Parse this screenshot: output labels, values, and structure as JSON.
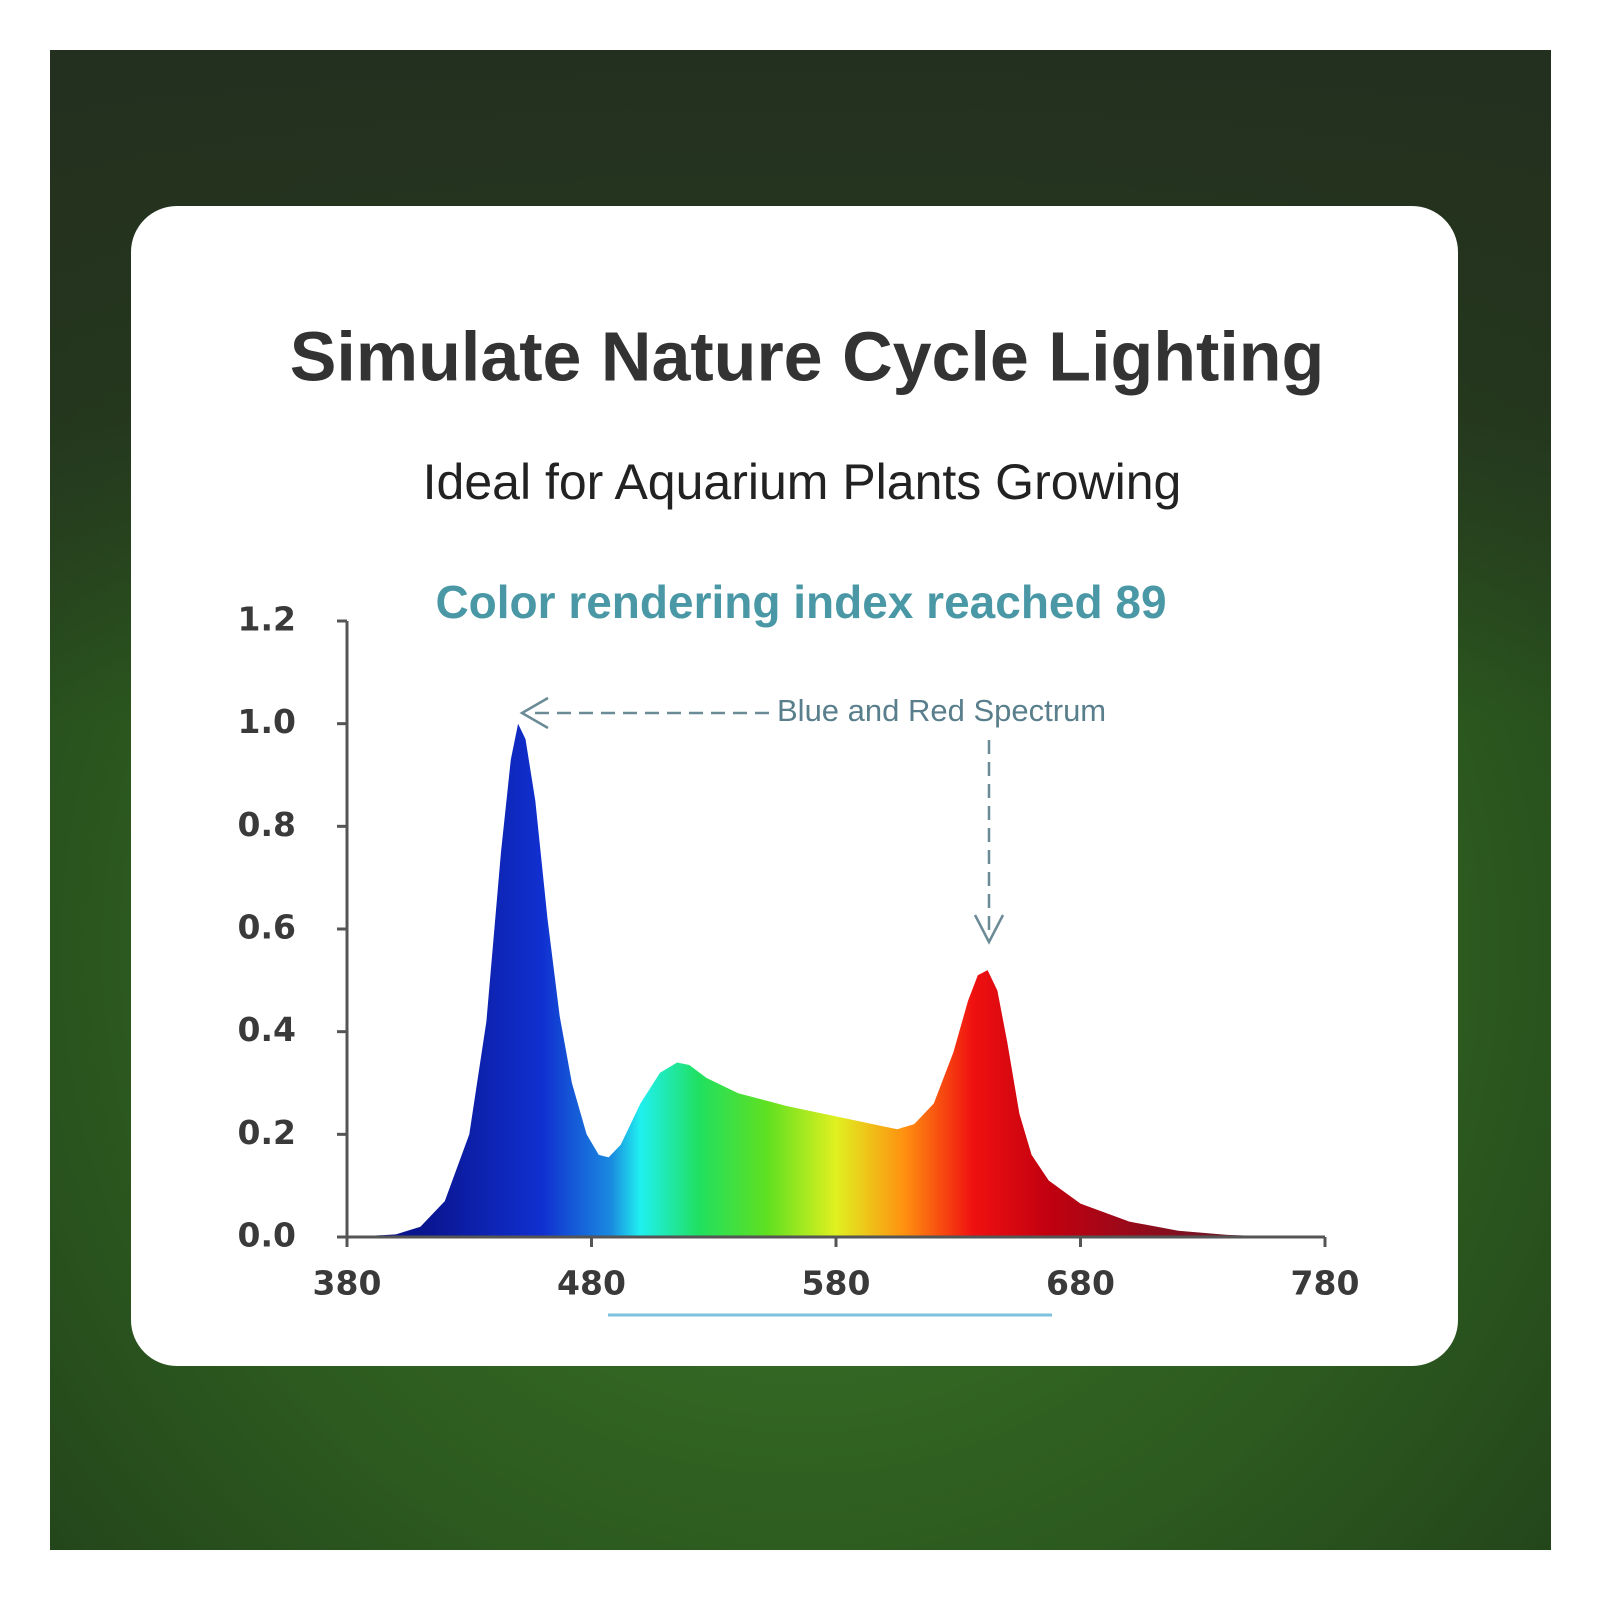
{
  "header": {
    "title": "Simulate Nature Cycle Lighting",
    "subtitle": "Ideal for Aquarium Plants Growing"
  },
  "chart_data": {
    "type": "area",
    "title": "Color rendering index reached 89",
    "annotation": "Blue and Red Spectrum",
    "x": [
      380,
      400,
      410,
      420,
      430,
      437,
      443,
      447,
      450,
      453,
      457,
      462,
      467,
      472,
      478,
      483,
      487,
      492,
      500,
      508,
      515,
      520,
      527,
      540,
      560,
      580,
      595,
      605,
      612,
      620,
      628,
      634,
      638,
      642,
      646,
      650,
      655,
      660,
      667,
      680,
      700,
      720,
      740,
      760,
      780
    ],
    "values": [
      0,
      0.005,
      0.02,
      0.07,
      0.2,
      0.42,
      0.75,
      0.93,
      1.0,
      0.97,
      0.85,
      0.62,
      0.43,
      0.3,
      0.2,
      0.16,
      0.155,
      0.18,
      0.26,
      0.32,
      0.34,
      0.335,
      0.31,
      0.28,
      0.255,
      0.235,
      0.22,
      0.21,
      0.22,
      0.26,
      0.36,
      0.46,
      0.51,
      0.52,
      0.48,
      0.38,
      0.24,
      0.16,
      0.11,
      0.065,
      0.03,
      0.012,
      0.004,
      0.001,
      0
    ],
    "xlim": [
      380,
      780
    ],
    "xticks": [
      380,
      480,
      580,
      680,
      780
    ],
    "ylim": [
      0,
      1.2
    ],
    "yticks": [
      {
        "value": 0,
        "label": "0.0"
      },
      0.2,
      0.4,
      0.6,
      0.8,
      {
        "value": 1,
        "label": "1.0"
      },
      1.2
    ]
  }
}
